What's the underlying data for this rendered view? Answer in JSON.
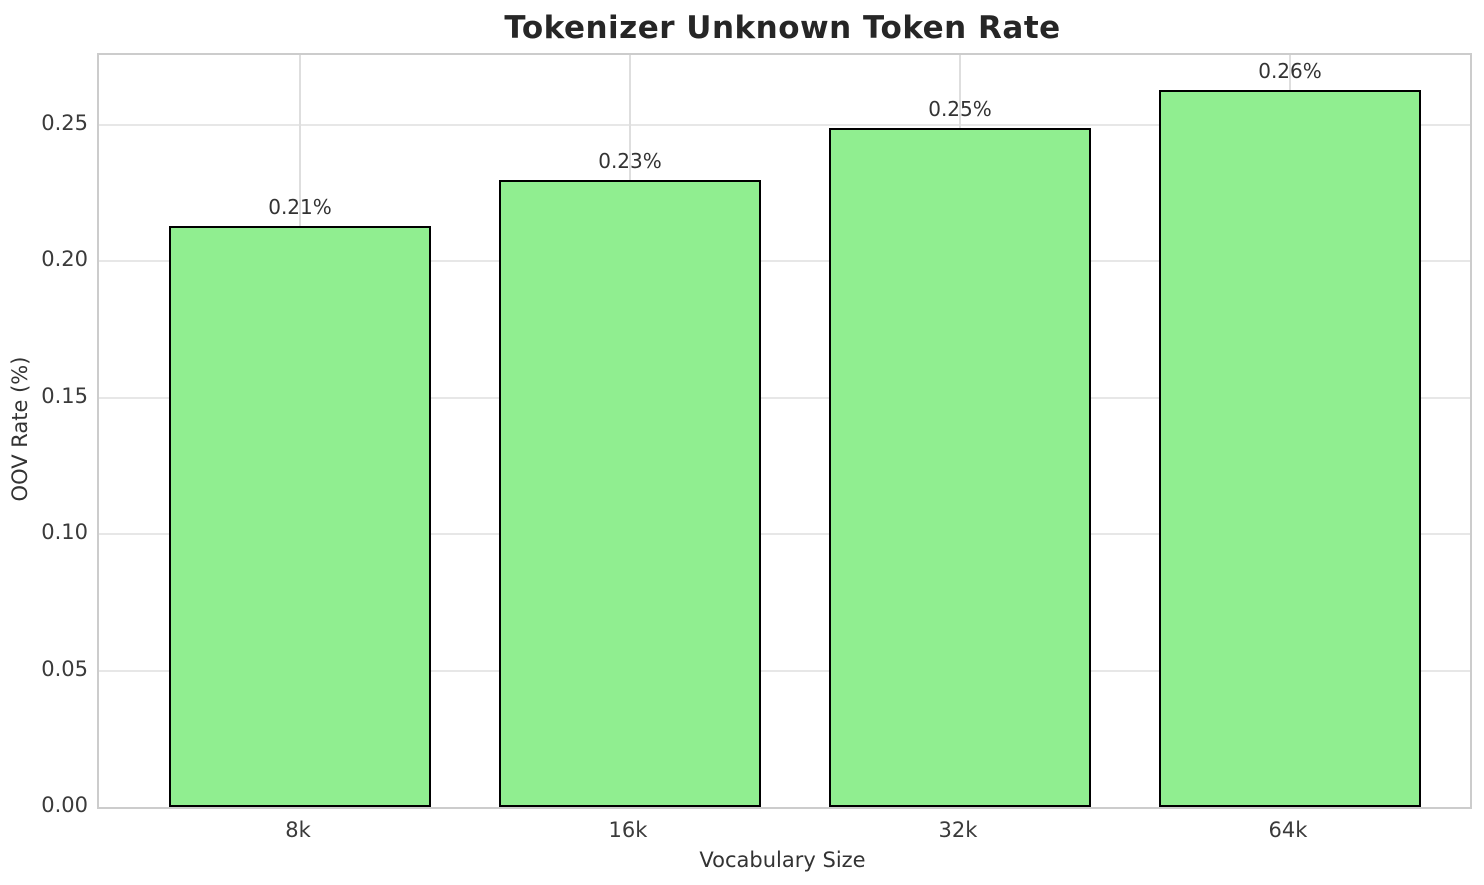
{
  "chart_data": {
    "type": "bar",
    "title": "Tokenizer Unknown Token Rate",
    "xlabel": "Vocabulary Size",
    "ylabel": "OOV Rate (%)",
    "categories": [
      "8k",
      "16k",
      "32k",
      "64k"
    ],
    "values": [
      0.213,
      0.23,
      0.249,
      0.263
    ],
    "bar_labels": [
      "0.21%",
      "0.23%",
      "0.25%",
      "0.26%"
    ],
    "yticks": [
      0.0,
      0.05,
      0.1,
      0.15,
      0.2,
      0.25
    ],
    "ytick_labels": [
      "0.00",
      "0.05",
      "0.10",
      "0.15",
      "0.20",
      "0.25"
    ],
    "ylim": [
      0,
      0.2757
    ],
    "grid": true,
    "legend": "none",
    "bar_color": "#90EE90",
    "bar_edge_color": "#000000",
    "grid_color": "#e2e2e2",
    "spine_color": "#cccccc",
    "background_color": "#ffffff"
  }
}
